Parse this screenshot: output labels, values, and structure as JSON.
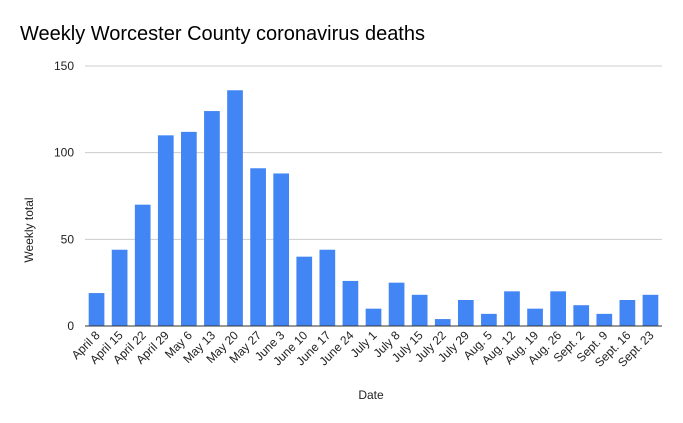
{
  "chart_data": {
    "type": "bar",
    "title": "Weekly Worcester County coronavirus deaths",
    "xlabel": "Date",
    "ylabel": "Weekly total",
    "ylim": [
      0,
      150
    ],
    "yticks": [
      0,
      50,
      100,
      150
    ],
    "grid": true,
    "categories": [
      "April 8",
      "April 15",
      "April 22",
      "April 29",
      "May 6",
      "May 13",
      "May 20",
      "May 27",
      "June 3",
      "June 10",
      "June 17",
      "June 24",
      "July 1",
      "July 8",
      "July 15",
      "July 22",
      "July 29",
      "Aug. 5",
      "Aug. 12",
      "Aug. 19",
      "Aug. 26",
      "Sept. 2",
      "Sept. 9",
      "Sept. 16",
      "Sept. 23"
    ],
    "values": [
      19,
      44,
      70,
      110,
      112,
      124,
      136,
      91,
      88,
      40,
      44,
      26,
      10,
      25,
      18,
      4,
      15,
      7,
      20,
      10,
      20,
      12,
      7,
      15,
      18
    ],
    "colors": {
      "bar": "#4285f4",
      "grid": "#cccccc",
      "axis": "#333333"
    }
  }
}
